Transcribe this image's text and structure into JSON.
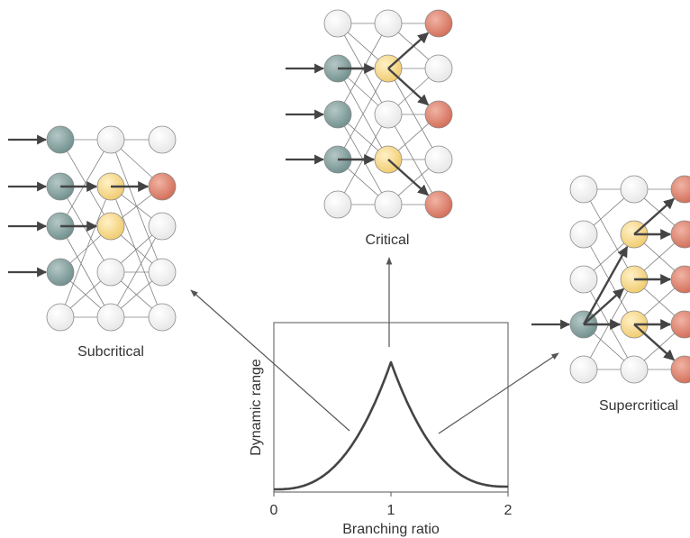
{
  "labels": {
    "subcritical": "Subcritical",
    "critical": "Critical",
    "supercritical": "Supercritical"
  },
  "plot": {
    "ylabel": "Dynamic range",
    "xlabel": "Branching ratio",
    "x_ticks": [
      "0",
      "1",
      "2"
    ]
  },
  "colors": {
    "input": "#7f9d9b",
    "relay": "#f6d78b",
    "output": "#da7e6a",
    "inactive": "#f1f1f1",
    "edge": "#808080",
    "arrow": "#444444"
  },
  "chart_data": {
    "type": "line",
    "xlabel": "Branching ratio",
    "ylabel": "Dynamic range",
    "xlim": [
      0,
      2
    ],
    "x_ticks": [
      0,
      1,
      2
    ],
    "peak_x": 1
  }
}
